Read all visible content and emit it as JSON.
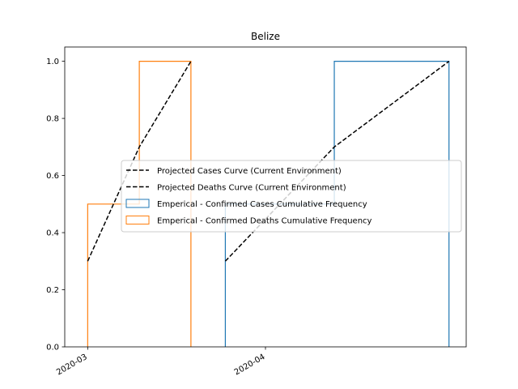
{
  "chart_data": {
    "type": "line",
    "title": "Belize",
    "xlabel": "",
    "ylabel": "",
    "x_ticks": [
      "2020-03",
      "2020-04"
    ],
    "y_ticks": [
      "0.0",
      "0.2",
      "0.4",
      "0.6",
      "0.8",
      "1.0"
    ],
    "xlim": [
      "2020-02-26",
      "2020-05-06"
    ],
    "ylim": [
      0,
      1.05
    ],
    "grid": false,
    "legend_position": "center-right",
    "series": [
      {
        "name": "Projected Cases Curve (Current Environment)",
        "kind": "line",
        "style": "dashed",
        "color": "#000000",
        "x": [
          "2020-03-25",
          "2020-04-13",
          "2020-05-03"
        ],
        "y": [
          0.3,
          0.7,
          1.0
        ]
      },
      {
        "name": "Projected Deaths Curve (Current Environment)",
        "kind": "line",
        "style": "dashed",
        "color": "#000000",
        "x": [
          "2020-03-01",
          "2020-03-10",
          "2020-03-19"
        ],
        "y": [
          0.3,
          0.7,
          1.0
        ]
      },
      {
        "name": "Emperical - Confirmed Cases Cumulative Frequency",
        "kind": "step-histogram",
        "color": "#1f77b4",
        "x_edges": [
          "2020-03-25",
          "2020-04-13",
          "2020-05-03"
        ],
        "values": [
          0.5,
          1.0
        ]
      },
      {
        "name": "Emperical - Confirmed Deaths Cumulative Frequency",
        "kind": "step-histogram",
        "color": "#ff7f0e",
        "x_edges": [
          "2020-03-01",
          "2020-03-10",
          "2020-03-19"
        ],
        "values": [
          0.5,
          1.0
        ]
      }
    ]
  }
}
